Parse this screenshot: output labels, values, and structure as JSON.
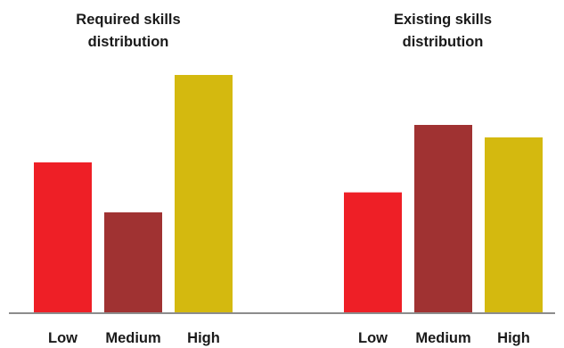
{
  "chart_data": [
    {
      "type": "bar",
      "title": [
        "Required skills",
        "distribution"
      ],
      "categories": [
        "Low",
        "Medium",
        "High"
      ],
      "values": [
        6,
        4,
        9.5
      ],
      "colors": [
        "#ee1f26",
        "#a03232",
        "#d4b90f"
      ],
      "ylim": [
        0,
        10
      ],
      "grid": false,
      "legend": "none"
    },
    {
      "type": "bar",
      "title": [
        "Existing skills",
        "distribution"
      ],
      "categories": [
        "Low",
        "Medium",
        "High"
      ],
      "values": [
        4.8,
        7.5,
        7
      ],
      "colors": [
        "#ee1f26",
        "#a03232",
        "#d4b90f"
      ],
      "ylim": [
        0,
        10
      ],
      "grid": false,
      "legend": "none"
    }
  ],
  "axis_color": "#8c8c8c"
}
